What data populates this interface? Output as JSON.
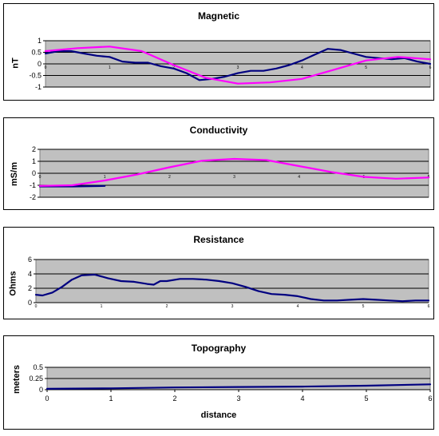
{
  "chart_data": [
    {
      "type": "line",
      "title": "Magnetic",
      "ylabel": "nT",
      "xlabel": "",
      "ylim": [
        -1,
        1
      ],
      "yticks": [
        -1,
        -0.5,
        0,
        0.5,
        1
      ],
      "xlim": [
        0,
        6
      ],
      "xticks": [
        "0",
        "1",
        "2",
        "3",
        "4",
        "5",
        "6"
      ],
      "grid": true,
      "series": [
        {
          "color": "#000080",
          "x": [
            0,
            0.2,
            0.4,
            0.6,
            0.8,
            1.0,
            1.2,
            1.4,
            1.6,
            1.8,
            2.0,
            2.2,
            2.4,
            2.6,
            2.8,
            3.0,
            3.2,
            3.4,
            3.6,
            3.8,
            4.0,
            4.2,
            4.4,
            4.6,
            4.8,
            5.0,
            5.2,
            5.4,
            5.6,
            5.8,
            6.0
          ],
          "y": [
            0.45,
            0.55,
            0.55,
            0.45,
            0.35,
            0.3,
            0.1,
            0.05,
            0.05,
            -0.1,
            -0.2,
            -0.4,
            -0.7,
            -0.65,
            -0.55,
            -0.4,
            -0.3,
            -0.3,
            -0.2,
            -0.05,
            0.15,
            0.4,
            0.65,
            0.6,
            0.45,
            0.3,
            0.25,
            0.2,
            0.25,
            0.1,
            0.0
          ]
        },
        {
          "color": "#ff00ff",
          "x": [
            0,
            0.5,
            1.0,
            1.5,
            2.0,
            2.5,
            3.0,
            3.5,
            4.0,
            4.5,
            5.0,
            5.5,
            6.0
          ],
          "y": [
            0.55,
            0.68,
            0.75,
            0.55,
            -0.05,
            -0.6,
            -0.85,
            -0.8,
            -0.65,
            -0.25,
            0.15,
            0.3,
            0.2
          ]
        }
      ]
    },
    {
      "type": "line",
      "title": "Conductivity",
      "ylabel": "mS/m",
      "xlabel": "",
      "ylim": [
        -2,
        2
      ],
      "yticks": [
        -2,
        -1,
        0,
        1,
        2
      ],
      "xlim": [
        0,
        6
      ],
      "xticks": [
        "0",
        "1",
        "2",
        "3",
        "4",
        "5",
        "6"
      ],
      "grid": true,
      "series": [
        {
          "color": "#000080",
          "x": [
            0,
            0.5,
            1.0
          ],
          "y": [
            -1.1,
            -1.1,
            -1.05
          ]
        },
        {
          "color": "#ff00ff",
          "x": [
            0,
            0.5,
            1.0,
            1.5,
            2.0,
            2.5,
            3.0,
            3.5,
            4.0,
            4.5,
            5.0,
            5.5,
            6.0
          ],
          "y": [
            -1.05,
            -1.0,
            -0.6,
            -0.1,
            0.5,
            1.05,
            1.2,
            1.1,
            0.6,
            0.1,
            -0.3,
            -0.45,
            -0.35
          ]
        }
      ]
    },
    {
      "type": "line",
      "title": "Resistance",
      "ylabel": "Ohms",
      "xlabel": "",
      "ylim": [
        0,
        6
      ],
      "yticks": [
        0,
        2,
        4,
        6
      ],
      "xlim": [
        0,
        6
      ],
      "xticks": [
        "0",
        "1",
        "2",
        "3",
        "4",
        "5",
        "6"
      ],
      "grid": true,
      "series": [
        {
          "color": "#000080",
          "x": [
            0,
            0.1,
            0.25,
            0.4,
            0.55,
            0.7,
            0.9,
            1.1,
            1.3,
            1.5,
            1.7,
            1.8,
            1.9,
            2.0,
            2.2,
            2.4,
            2.6,
            2.8,
            3.0,
            3.2,
            3.4,
            3.6,
            3.8,
            4.0,
            4.2,
            4.4,
            4.6,
            4.8,
            5.0,
            5.2,
            5.4,
            5.6,
            5.8,
            6.0
          ],
          "y": [
            1.1,
            1.0,
            1.4,
            2.2,
            3.2,
            3.8,
            3.9,
            3.4,
            3.0,
            2.9,
            2.6,
            2.5,
            3.0,
            3.0,
            3.3,
            3.3,
            3.2,
            3.0,
            2.7,
            2.2,
            1.6,
            1.2,
            1.1,
            0.9,
            0.5,
            0.3,
            0.3,
            0.4,
            0.5,
            0.4,
            0.3,
            0.2,
            0.3,
            0.3
          ]
        }
      ]
    },
    {
      "type": "line",
      "title": "Topography",
      "ylabel": "meters",
      "xlabel": "distance",
      "ylim": [
        0,
        0.5
      ],
      "yticks": [
        0,
        0.25,
        0.5
      ],
      "xlim": [
        0,
        6
      ],
      "xticks": [
        "0",
        "1",
        "2",
        "3",
        "4",
        "5",
        "6"
      ],
      "grid": true,
      "series": [
        {
          "color": "#000080",
          "x": [
            0,
            1,
            2,
            3,
            4,
            5,
            6
          ],
          "y": [
            0.02,
            0.03,
            0.05,
            0.06,
            0.07,
            0.09,
            0.12
          ]
        }
      ]
    }
  ]
}
